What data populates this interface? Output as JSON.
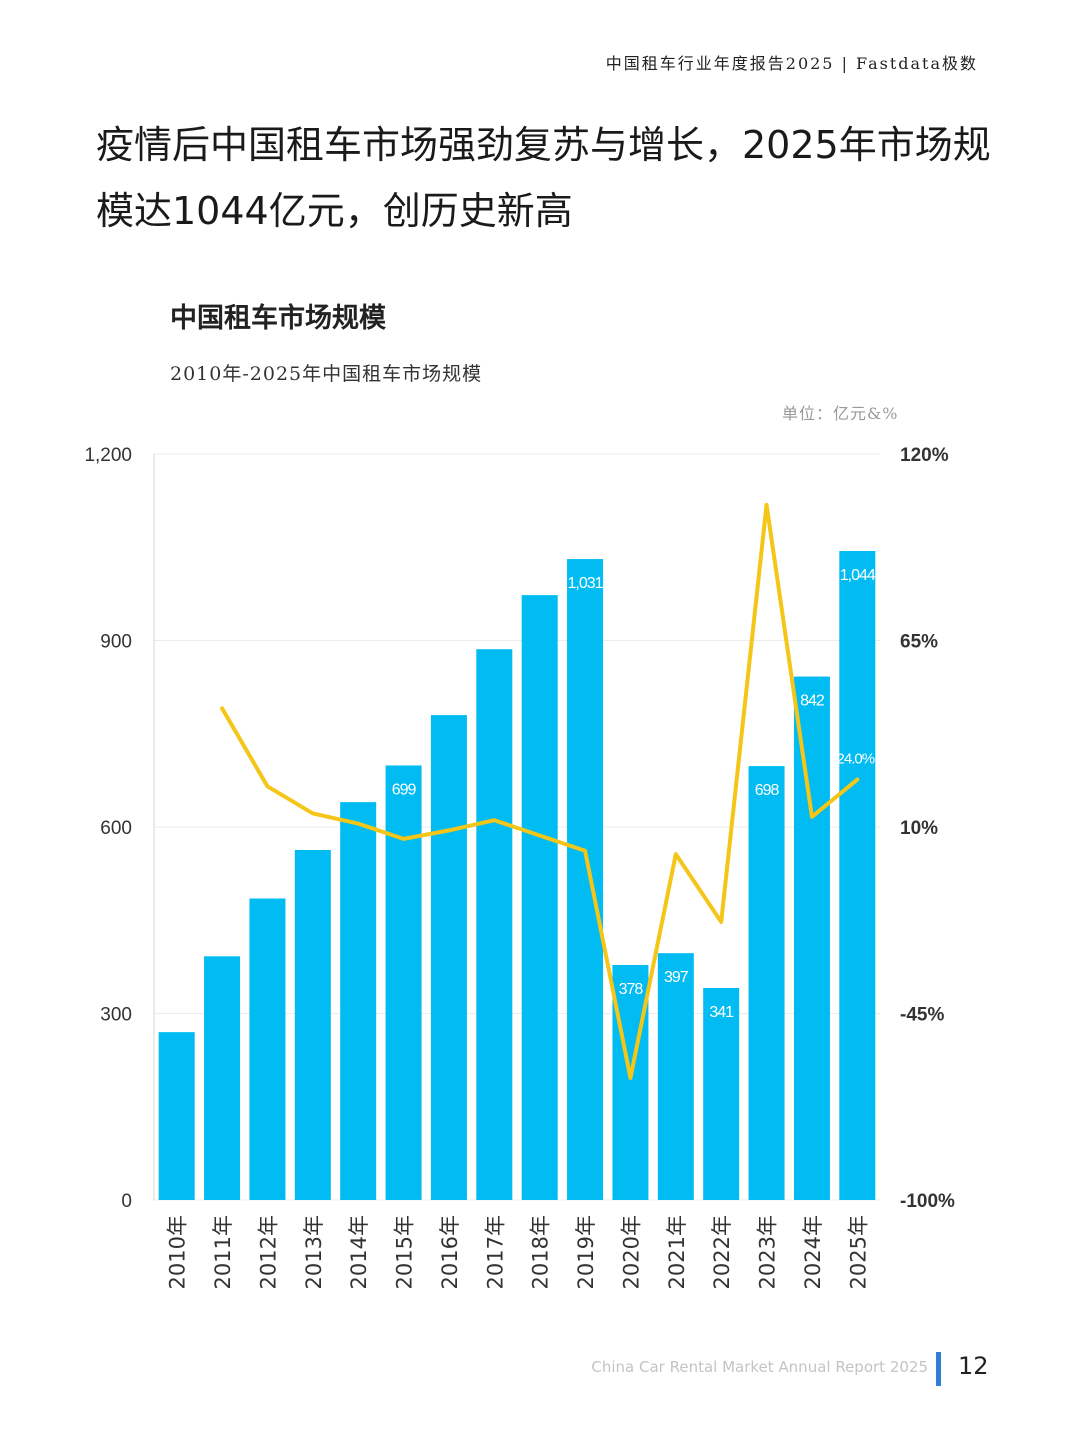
{
  "header": {
    "report_title": "中国租车行业年度报告2025 | Fastdata极数"
  },
  "headline": "疫情后中国租车市场强劲复苏与增长，2025年市场规模达1044亿元，创历史新高",
  "footer": {
    "report_name": "China Car Rental Market Annual Report 2025",
    "page_number": "12",
    "accent_color": "#2f7ed8"
  },
  "chart_data": {
    "type": "bar",
    "title": "中国租车市场规模",
    "subtitle": "2010年-2025年中国租车市场规模",
    "unit_label": "单位：亿元&%",
    "categories": [
      "2010年",
      "2011年",
      "2012年",
      "2013年",
      "2014年",
      "2015年",
      "2016年",
      "2017年",
      "2018年",
      "2019年",
      "2020年",
      "2021年",
      "2022年",
      "2023年",
      "2024年",
      "2025年"
    ],
    "series": [
      {
        "type": "bar",
        "axis": "left",
        "color": "#00bcf2",
        "values": [
          270,
          392,
          485,
          563,
          640,
          699,
          780,
          886,
          973,
          1031,
          378,
          397,
          341,
          698,
          842,
          1044
        ]
      },
      {
        "type": "line",
        "axis": "right",
        "color": "#f5c518",
        "values": [
          null,
          45,
          22,
          14,
          11,
          6.5,
          9,
          12,
          7.5,
          3,
          -64,
          2,
          -18,
          105,
          13,
          24.0
        ]
      }
    ],
    "bar_labels": [
      {
        "index": 5,
        "text": "699"
      },
      {
        "index": 9,
        "text": "1,031"
      },
      {
        "index": 10,
        "text": "378"
      },
      {
        "index": 11,
        "text": "397"
      },
      {
        "index": 12,
        "text": "341"
      },
      {
        "index": 13,
        "text": "698"
      },
      {
        "index": 14,
        "text": "842"
      },
      {
        "index": 15,
        "text": "1,044"
      }
    ],
    "line_labels": [
      {
        "index": 15,
        "text": "24.0%"
      }
    ],
    "y_left": {
      "min": 0,
      "max": 1200,
      "ticks": [
        "0",
        "300",
        "600",
        "900",
        "1,200"
      ]
    },
    "y_right": {
      "min": -100,
      "max": 120,
      "ticks": [
        "-100%",
        "-45%",
        "10%",
        "65%",
        "120%"
      ]
    },
    "grid": true
  }
}
